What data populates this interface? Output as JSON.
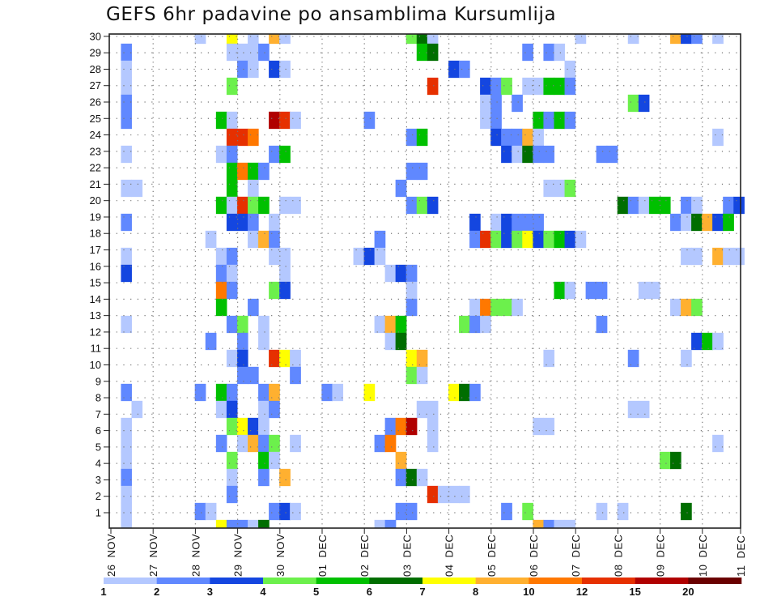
{
  "chart_data": {
    "type": "heatmap",
    "title": "GEFS 6hr padavine po ansamblima Kursumlija",
    "xlabel": "",
    "ylabel": "",
    "x_step_hours": 6,
    "x_tick_labels": [
      {
        "day": "26",
        "month": "NOV"
      },
      {
        "day": "27",
        "month": "NOV"
      },
      {
        "day": "28",
        "month": "NOV"
      },
      {
        "day": "29",
        "month": "NOV"
      },
      {
        "day": "30",
        "month": "NOV"
      },
      {
        "day": "01",
        "month": "DEC"
      },
      {
        "day": "02",
        "month": "DEC"
      },
      {
        "day": "03",
        "month": "DEC"
      },
      {
        "day": "04",
        "month": "DEC"
      },
      {
        "day": "05",
        "month": "DEC"
      },
      {
        "day": "06",
        "month": "DEC"
      },
      {
        "day": "07",
        "month": "DEC"
      },
      {
        "day": "08",
        "month": "DEC"
      },
      {
        "day": "09",
        "month": "DEC"
      },
      {
        "day": "10",
        "month": "DEC"
      },
      {
        "day": "11",
        "month": "DEC"
      }
    ],
    "y_tick_labels": [
      "1",
      "2",
      "3",
      "4",
      "5",
      "6",
      "7",
      "8",
      "9",
      "10",
      "11",
      "12",
      "13",
      "14",
      "15",
      "16",
      "17",
      "18",
      "19",
      "20",
      "21",
      "22",
      "23",
      "24",
      "25",
      "26",
      "27",
      "28",
      "29",
      "30"
    ],
    "ylim": [
      1,
      30
    ],
    "n_steps": 60,
    "grid": true,
    "colorbar": {
      "placement": "bottom",
      "levels": [
        1,
        2,
        3,
        4,
        5,
        6,
        7,
        8,
        10,
        12,
        15,
        20
      ],
      "labels": [
        "1",
        "2",
        "3",
        "4",
        "5",
        "6",
        "7",
        "8",
        "10",
        "12",
        "15",
        "20"
      ],
      "colors": [
        "#b4c8ff",
        "#6088ff",
        "#1446e0",
        "#6cf04c",
        "#00c000",
        "#006e00",
        "#ffff00",
        "#ffb030",
        "#ff7800",
        "#e63000",
        "#b00000",
        "#6a0000"
      ]
    },
    "cells_format": "[member, 6h step index from 26 NOV 00Z, precipitation class lower bound mm]",
    "cells": [
      [
        30,
        8,
        1
      ],
      [
        30,
        11,
        7
      ],
      [
        30,
        13,
        1
      ],
      [
        30,
        15,
        8
      ],
      [
        30,
        16,
        1
      ],
      [
        30,
        28,
        4
      ],
      [
        30,
        29,
        6
      ],
      [
        30,
        30,
        1
      ],
      [
        30,
        44,
        1
      ],
      [
        30,
        49,
        1
      ],
      [
        30,
        53,
        8
      ],
      [
        30,
        54,
        3
      ],
      [
        30,
        55,
        2
      ],
      [
        30,
        57,
        1
      ],
      [
        29,
        1,
        2
      ],
      [
        29,
        11,
        1
      ],
      [
        29,
        12,
        1
      ],
      [
        29,
        13,
        1
      ],
      [
        29,
        14,
        2
      ],
      [
        29,
        29,
        5
      ],
      [
        29,
        30,
        6
      ],
      [
        29,
        39,
        2
      ],
      [
        29,
        41,
        2
      ],
      [
        29,
        42,
        1
      ],
      [
        28,
        1,
        1
      ],
      [
        28,
        12,
        2
      ],
      [
        28,
        13,
        1
      ],
      [
        28,
        15,
        3
      ],
      [
        28,
        16,
        1
      ],
      [
        28,
        32,
        3
      ],
      [
        28,
        33,
        2
      ],
      [
        28,
        43,
        1
      ],
      [
        27,
        1,
        1
      ],
      [
        27,
        11,
        4
      ],
      [
        27,
        30,
        12
      ],
      [
        27,
        35,
        3
      ],
      [
        27,
        36,
        2
      ],
      [
        27,
        37,
        4
      ],
      [
        27,
        39,
        1
      ],
      [
        27,
        40,
        1
      ],
      [
        27,
        41,
        5
      ],
      [
        27,
        42,
        5
      ],
      [
        27,
        43,
        2
      ],
      [
        26,
        1,
        2
      ],
      [
        26,
        35,
        1
      ],
      [
        26,
        36,
        2
      ],
      [
        26,
        38,
        2
      ],
      [
        26,
        49,
        4
      ],
      [
        26,
        50,
        3
      ],
      [
        25,
        1,
        2
      ],
      [
        25,
        10,
        5
      ],
      [
        25,
        11,
        1
      ],
      [
        25,
        15,
        15
      ],
      [
        25,
        16,
        12
      ],
      [
        25,
        17,
        1
      ],
      [
        25,
        24,
        2
      ],
      [
        25,
        35,
        1
      ],
      [
        25,
        36,
        2
      ],
      [
        25,
        40,
        5
      ],
      [
        25,
        41,
        2
      ],
      [
        25,
        42,
        5
      ],
      [
        25,
        43,
        2
      ],
      [
        24,
        11,
        12
      ],
      [
        24,
        12,
        12
      ],
      [
        24,
        13,
        10
      ],
      [
        24,
        28,
        2
      ],
      [
        24,
        29,
        5
      ],
      [
        24,
        36,
        3
      ],
      [
        24,
        37,
        2
      ],
      [
        24,
        38,
        2
      ],
      [
        24,
        39,
        8
      ],
      [
        24,
        40,
        1
      ],
      [
        24,
        57,
        1
      ],
      [
        23,
        1,
        1
      ],
      [
        23,
        10,
        1
      ],
      [
        23,
        11,
        2
      ],
      [
        23,
        15,
        2
      ],
      [
        23,
        16,
        5
      ],
      [
        23,
        37,
        3
      ],
      [
        23,
        38,
        1
      ],
      [
        23,
        39,
        6
      ],
      [
        23,
        40,
        2
      ],
      [
        23,
        41,
        2
      ],
      [
        23,
        46,
        2
      ],
      [
        23,
        47,
        2
      ],
      [
        22,
        11,
        5
      ],
      [
        22,
        12,
        10
      ],
      [
        22,
        13,
        5
      ],
      [
        22,
        14,
        2
      ],
      [
        22,
        28,
        2
      ],
      [
        22,
        29,
        2
      ],
      [
        21,
        1,
        1
      ],
      [
        21,
        2,
        1
      ],
      [
        21,
        11,
        5
      ],
      [
        21,
        13,
        1
      ],
      [
        21,
        27,
        2
      ],
      [
        21,
        41,
        1
      ],
      [
        21,
        42,
        1
      ],
      [
        21,
        43,
        4
      ],
      [
        20,
        10,
        5
      ],
      [
        20,
        11,
        1
      ],
      [
        20,
        12,
        12
      ],
      [
        20,
        13,
        4
      ],
      [
        20,
        14,
        5
      ],
      [
        20,
        16,
        1
      ],
      [
        20,
        17,
        1
      ],
      [
        20,
        28,
        2
      ],
      [
        20,
        29,
        4
      ],
      [
        20,
        30,
        3
      ],
      [
        20,
        48,
        6
      ],
      [
        20,
        49,
        2
      ],
      [
        20,
        50,
        1
      ],
      [
        20,
        51,
        5
      ],
      [
        20,
        52,
        5
      ],
      [
        20,
        54,
        2
      ],
      [
        20,
        55,
        1
      ],
      [
        20,
        58,
        2
      ],
      [
        20,
        59,
        3
      ],
      [
        19,
        1,
        2
      ],
      [
        19,
        11,
        3
      ],
      [
        19,
        12,
        3
      ],
      [
        19,
        13,
        2
      ],
      [
        19,
        15,
        1
      ],
      [
        19,
        34,
        3
      ],
      [
        19,
        36,
        1
      ],
      [
        19,
        37,
        3
      ],
      [
        19,
        38,
        2
      ],
      [
        19,
        39,
        2
      ],
      [
        19,
        40,
        2
      ],
      [
        19,
        53,
        2
      ],
      [
        19,
        54,
        1
      ],
      [
        19,
        55,
        6
      ],
      [
        19,
        56,
        8
      ],
      [
        19,
        57,
        3
      ],
      [
        19,
        58,
        5
      ],
      [
        18,
        9,
        1
      ],
      [
        18,
        13,
        1
      ],
      [
        18,
        14,
        8
      ],
      [
        18,
        15,
        2
      ],
      [
        18,
        25,
        2
      ],
      [
        18,
        34,
        2
      ],
      [
        18,
        35,
        12
      ],
      [
        18,
        36,
        4
      ],
      [
        18,
        37,
        3
      ],
      [
        18,
        38,
        4
      ],
      [
        18,
        39,
        7
      ],
      [
        18,
        40,
        3
      ],
      [
        18,
        41,
        4
      ],
      [
        18,
        42,
        5
      ],
      [
        18,
        43,
        3
      ],
      [
        18,
        44,
        1
      ],
      [
        17,
        1,
        1
      ],
      [
        17,
        10,
        1
      ],
      [
        17,
        11,
        2
      ],
      [
        17,
        15,
        1
      ],
      [
        17,
        16,
        1
      ],
      [
        17,
        23,
        1
      ],
      [
        17,
        24,
        3
      ],
      [
        17,
        25,
        1
      ],
      [
        17,
        54,
        1
      ],
      [
        17,
        55,
        1
      ],
      [
        17,
        57,
        8
      ],
      [
        17,
        58,
        1
      ],
      [
        17,
        59,
        1
      ],
      [
        16,
        1,
        3
      ],
      [
        16,
        10,
        2
      ],
      [
        16,
        11,
        1
      ],
      [
        16,
        16,
        1
      ],
      [
        16,
        26,
        1
      ],
      [
        16,
        27,
        3
      ],
      [
        16,
        28,
        2
      ],
      [
        15,
        10,
        10
      ],
      [
        15,
        11,
        2
      ],
      [
        15,
        15,
        4
      ],
      [
        15,
        16,
        3
      ],
      [
        15,
        28,
        1
      ],
      [
        15,
        42,
        5
      ],
      [
        15,
        43,
        1
      ],
      [
        15,
        45,
        2
      ],
      [
        15,
        46,
        2
      ],
      [
        15,
        50,
        1
      ],
      [
        15,
        51,
        1
      ],
      [
        14,
        10,
        5
      ],
      [
        14,
        13,
        2
      ],
      [
        14,
        28,
        2
      ],
      [
        14,
        34,
        1
      ],
      [
        14,
        35,
        10
      ],
      [
        14,
        36,
        4
      ],
      [
        14,
        37,
        4
      ],
      [
        14,
        38,
        1
      ],
      [
        14,
        53,
        1
      ],
      [
        14,
        54,
        8
      ],
      [
        14,
        55,
        4
      ],
      [
        13,
        1,
        1
      ],
      [
        13,
        11,
        2
      ],
      [
        13,
        12,
        4
      ],
      [
        13,
        14,
        1
      ],
      [
        13,
        25,
        1
      ],
      [
        13,
        26,
        8
      ],
      [
        13,
        27,
        5
      ],
      [
        13,
        33,
        4
      ],
      [
        13,
        34,
        2
      ],
      [
        13,
        35,
        1
      ],
      [
        13,
        46,
        2
      ],
      [
        12,
        9,
        2
      ],
      [
        12,
        12,
        2
      ],
      [
        12,
        14,
        1
      ],
      [
        12,
        26,
        1
      ],
      [
        12,
        27,
        6
      ],
      [
        12,
        55,
        3
      ],
      [
        12,
        56,
        5
      ],
      [
        12,
        57,
        1
      ],
      [
        11,
        11,
        1
      ],
      [
        11,
        12,
        3
      ],
      [
        11,
        15,
        12
      ],
      [
        11,
        16,
        7
      ],
      [
        11,
        17,
        1
      ],
      [
        11,
        28,
        7
      ],
      [
        11,
        29,
        8
      ],
      [
        11,
        41,
        1
      ],
      [
        11,
        49,
        2
      ],
      [
        11,
        54,
        1
      ],
      [
        10,
        12,
        2
      ],
      [
        10,
        13,
        2
      ],
      [
        10,
        17,
        2
      ],
      [
        10,
        28,
        4
      ],
      [
        10,
        29,
        1
      ],
      [
        9,
        1,
        2
      ],
      [
        9,
        8,
        2
      ],
      [
        9,
        10,
        5
      ],
      [
        9,
        11,
        2
      ],
      [
        9,
        14,
        2
      ],
      [
        9,
        15,
        8
      ],
      [
        9,
        20,
        2
      ],
      [
        9,
        21,
        1
      ],
      [
        9,
        24,
        7
      ],
      [
        9,
        32,
        7
      ],
      [
        9,
        33,
        6
      ],
      [
        9,
        34,
        2
      ],
      [
        8,
        2,
        1
      ],
      [
        8,
        10,
        1
      ],
      [
        8,
        11,
        3
      ],
      [
        8,
        14,
        1
      ],
      [
        8,
        15,
        2
      ],
      [
        8,
        29,
        1
      ],
      [
        8,
        30,
        1
      ],
      [
        8,
        49,
        1
      ],
      [
        8,
        50,
        1
      ],
      [
        7,
        1,
        1
      ],
      [
        7,
        11,
        4
      ],
      [
        7,
        12,
        7
      ],
      [
        7,
        13,
        3
      ],
      [
        7,
        14,
        1
      ],
      [
        7,
        26,
        2
      ],
      [
        7,
        27,
        10
      ],
      [
        7,
        28,
        15
      ],
      [
        7,
        30,
        1
      ],
      [
        7,
        40,
        1
      ],
      [
        7,
        41,
        1
      ],
      [
        6,
        1,
        1
      ],
      [
        6,
        10,
        2
      ],
      [
        6,
        12,
        1
      ],
      [
        6,
        13,
        8
      ],
      [
        6,
        14,
        2
      ],
      [
        6,
        15,
        4
      ],
      [
        6,
        17,
        1
      ],
      [
        6,
        25,
        2
      ],
      [
        6,
        26,
        10
      ],
      [
        6,
        30,
        1
      ],
      [
        6,
        57,
        1
      ],
      [
        5,
        1,
        1
      ],
      [
        5,
        11,
        4
      ],
      [
        5,
        14,
        5
      ],
      [
        5,
        15,
        1
      ],
      [
        5,
        27,
        8
      ],
      [
        5,
        52,
        4
      ],
      [
        5,
        53,
        6
      ],
      [
        4,
        1,
        2
      ],
      [
        4,
        11,
        1
      ],
      [
        4,
        14,
        2
      ],
      [
        4,
        16,
        8
      ],
      [
        4,
        27,
        2
      ],
      [
        4,
        28,
        6
      ],
      [
        4,
        29,
        1
      ],
      [
        3,
        1,
        1
      ],
      [
        3,
        11,
        2
      ],
      [
        3,
        30,
        12
      ],
      [
        3,
        31,
        1
      ],
      [
        3,
        32,
        1
      ],
      [
        3,
        33,
        1
      ],
      [
        2,
        1,
        1
      ],
      [
        2,
        8,
        2
      ],
      [
        2,
        9,
        1
      ],
      [
        2,
        15,
        2
      ],
      [
        2,
        16,
        3
      ],
      [
        2,
        17,
        1
      ],
      [
        2,
        27,
        2
      ],
      [
        2,
        28,
        2
      ],
      [
        2,
        37,
        2
      ],
      [
        2,
        39,
        4
      ],
      [
        2,
        46,
        1
      ],
      [
        2,
        48,
        1
      ],
      [
        2,
        54,
        6
      ],
      [
        1,
        1,
        1
      ],
      [
        1,
        10,
        7
      ],
      [
        1,
        11,
        2
      ],
      [
        1,
        12,
        2
      ],
      [
        1,
        13,
        1
      ],
      [
        1,
        14,
        6
      ],
      [
        1,
        25,
        1
      ],
      [
        1,
        26,
        2
      ],
      [
        1,
        40,
        8
      ],
      [
        1,
        41,
        2
      ],
      [
        1,
        42,
        1
      ],
      [
        1,
        43,
        1
      ]
    ]
  }
}
